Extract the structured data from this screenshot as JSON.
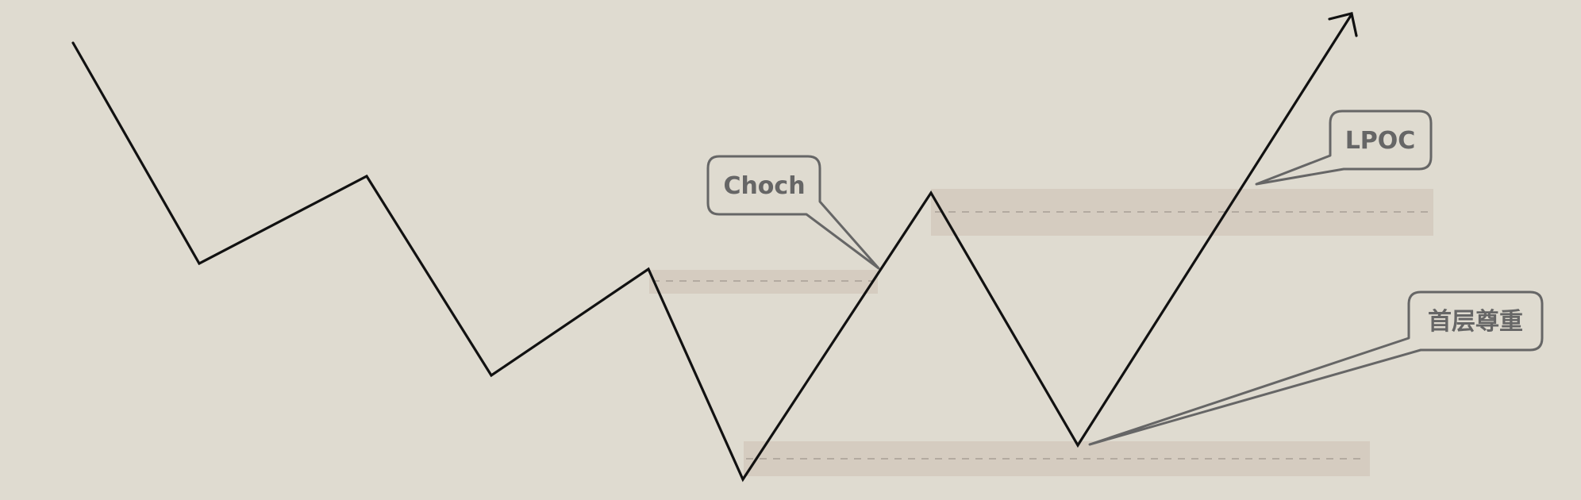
{
  "callouts": {
    "choch": "Choch",
    "lpoc": "LPOC",
    "first_respect": "首层尊重"
  },
  "colors": {
    "background": "#dfdbd0",
    "zone": "#d5ccc0",
    "price_line": "#111111",
    "callout": "#666666"
  }
}
